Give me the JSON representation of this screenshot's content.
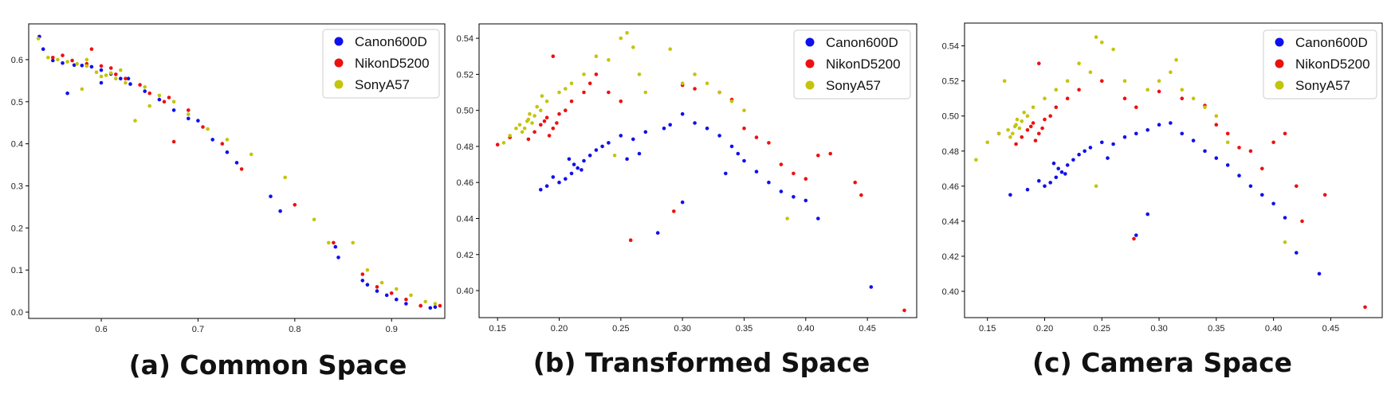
{
  "figure": {
    "captions": [
      "(a) Common Space",
      "(b) Transformed Space",
      "(c) Camera Space"
    ]
  },
  "chart_data": [
    {
      "type": "scatter",
      "title": "(a) Common Space",
      "xlabel": "",
      "ylabel": "",
      "xlim": [
        0.525,
        0.955
      ],
      "ylim": [
        -0.015,
        0.685
      ],
      "xticks": [
        0.6,
        0.7,
        0.8,
        0.9
      ],
      "yticks": [
        0.0,
        0.1,
        0.2,
        0.3,
        0.4,
        0.5,
        0.6
      ],
      "xtick_labels": [
        "0.6",
        "0.7",
        "0.8",
        "0.9"
      ],
      "ytick_labels": [
        "0.0",
        "0.1",
        "0.2",
        "0.3",
        "0.4",
        "0.5",
        "0.6"
      ],
      "grid": false,
      "legend": {
        "position": "top-right",
        "entries": [
          "Canon600D",
          "NikonD5200",
          "SonyA57"
        ]
      },
      "series": [
        {
          "name": "Canon600D",
          "color": "#1010ee",
          "x": [
            0.536,
            0.54,
            0.55,
            0.56,
            0.572,
            0.58,
            0.59,
            0.6,
            0.61,
            0.62,
            0.63,
            0.645,
            0.66,
            0.675,
            0.69,
            0.7,
            0.715,
            0.73,
            0.74,
            0.775,
            0.785,
            0.842,
            0.845,
            0.87,
            0.875,
            0.885,
            0.895,
            0.905,
            0.915,
            0.93,
            0.94,
            0.945,
            0.565,
            0.6,
            0.628
          ],
          "y": [
            0.655,
            0.625,
            0.598,
            0.592,
            0.587,
            0.586,
            0.583,
            0.575,
            0.566,
            0.555,
            0.542,
            0.525,
            0.505,
            0.48,
            0.46,
            0.455,
            0.41,
            0.38,
            0.355,
            0.275,
            0.24,
            0.155,
            0.13,
            0.075,
            0.065,
            0.05,
            0.04,
            0.03,
            0.02,
            0.015,
            0.01,
            0.012,
            0.52,
            0.545,
            0.555
          ]
        },
        {
          "name": "NikonD5200",
          "color": "#ee1010",
          "x": [
            0.55,
            0.56,
            0.57,
            0.585,
            0.6,
            0.615,
            0.625,
            0.64,
            0.65,
            0.665,
            0.675,
            0.69,
            0.705,
            0.725,
            0.745,
            0.8,
            0.84,
            0.87,
            0.885,
            0.9,
            0.915,
            0.93,
            0.95,
            0.59,
            0.61,
            0.67
          ],
          "y": [
            0.605,
            0.61,
            0.598,
            0.59,
            0.585,
            0.565,
            0.555,
            0.54,
            0.52,
            0.5,
            0.405,
            0.48,
            0.44,
            0.4,
            0.34,
            0.255,
            0.165,
            0.09,
            0.06,
            0.045,
            0.03,
            0.015,
            0.015,
            0.625,
            0.58,
            0.51
          ]
        },
        {
          "name": "SonyA57",
          "color": "#c4c40c",
          "x": [
            0.535,
            0.545,
            0.555,
            0.565,
            0.575,
            0.585,
            0.595,
            0.605,
            0.615,
            0.625,
            0.635,
            0.645,
            0.66,
            0.675,
            0.69,
            0.71,
            0.73,
            0.755,
            0.79,
            0.82,
            0.835,
            0.86,
            0.875,
            0.89,
            0.905,
            0.92,
            0.935,
            0.945,
            0.58,
            0.6,
            0.62,
            0.585,
            0.61,
            0.65
          ],
          "y": [
            0.65,
            0.605,
            0.6,
            0.595,
            0.59,
            0.585,
            0.57,
            0.563,
            0.555,
            0.545,
            0.455,
            0.535,
            0.515,
            0.5,
            0.47,
            0.435,
            0.41,
            0.375,
            0.32,
            0.22,
            0.165,
            0.165,
            0.1,
            0.07,
            0.055,
            0.04,
            0.025,
            0.02,
            0.53,
            0.56,
            0.575,
            0.6,
            0.568,
            0.49
          ]
        }
      ]
    },
    {
      "type": "scatter",
      "title": "(b) Transformed Space",
      "xlabel": "",
      "ylabel": "",
      "xlim": [
        0.135,
        0.49
      ],
      "ylim": [
        0.385,
        0.548
      ],
      "xticks": [
        0.15,
        0.2,
        0.25,
        0.3,
        0.35,
        0.4,
        0.45
      ],
      "yticks": [
        0.4,
        0.42,
        0.44,
        0.46,
        0.48,
        0.5,
        0.52,
        0.54
      ],
      "xtick_labels": [
        "0.15",
        "0.20",
        "0.25",
        "0.30",
        "0.35",
        "0.40",
        "0.45"
      ],
      "ytick_labels": [
        "0.40",
        "0.42",
        "0.44",
        "0.46",
        "0.48",
        "0.50",
        "0.52",
        "0.54"
      ],
      "grid": false,
      "legend": {
        "position": "top-right",
        "entries": [
          "Canon600D",
          "NikonD5200",
          "SonyA57"
        ]
      },
      "series": [
        {
          "name": "Canon600D",
          "color": "#1010ee",
          "x": [
            0.215,
            0.21,
            0.22,
            0.205,
            0.225,
            0.2,
            0.23,
            0.212,
            0.218,
            0.208,
            0.195,
            0.19,
            0.24,
            0.25,
            0.26,
            0.27,
            0.285,
            0.29,
            0.3,
            0.31,
            0.32,
            0.33,
            0.34,
            0.345,
            0.35,
            0.36,
            0.37,
            0.38,
            0.39,
            0.4,
            0.41,
            0.3,
            0.28,
            0.453,
            0.185,
            0.235,
            0.255,
            0.265,
            0.335
          ],
          "y": [
            0.468,
            0.465,
            0.472,
            0.462,
            0.475,
            0.46,
            0.478,
            0.47,
            0.467,
            0.473,
            0.463,
            0.458,
            0.482,
            0.486,
            0.484,
            0.488,
            0.49,
            0.492,
            0.498,
            0.493,
            0.49,
            0.486,
            0.48,
            0.476,
            0.472,
            0.466,
            0.46,
            0.455,
            0.452,
            0.45,
            0.44,
            0.449,
            0.432,
            0.402,
            0.456,
            0.48,
            0.473,
            0.476,
            0.465
          ]
        },
        {
          "name": "NikonD5200",
          "color": "#ee1010",
          "x": [
            0.185,
            0.19,
            0.195,
            0.18,
            0.2,
            0.188,
            0.192,
            0.198,
            0.205,
            0.175,
            0.16,
            0.15,
            0.21,
            0.22,
            0.225,
            0.23,
            0.24,
            0.25,
            0.3,
            0.31,
            0.33,
            0.34,
            0.35,
            0.36,
            0.37,
            0.38,
            0.39,
            0.4,
            0.41,
            0.42,
            0.44,
            0.445,
            0.48,
            0.258,
            0.293,
            0.195
          ],
          "y": [
            0.492,
            0.496,
            0.49,
            0.488,
            0.498,
            0.494,
            0.486,
            0.493,
            0.5,
            0.484,
            0.485,
            0.481,
            0.505,
            0.51,
            0.515,
            0.52,
            0.51,
            0.505,
            0.514,
            0.512,
            0.51,
            0.506,
            0.49,
            0.485,
            0.482,
            0.47,
            0.465,
            0.462,
            0.475,
            0.476,
            0.46,
            0.453,
            0.389,
            0.428,
            0.444,
            0.53
          ]
        },
        {
          "name": "SonyA57",
          "color": "#c4c40c",
          "x": [
            0.175,
            0.18,
            0.178,
            0.172,
            0.185,
            0.17,
            0.182,
            0.168,
            0.176,
            0.174,
            0.16,
            0.155,
            0.165,
            0.19,
            0.2,
            0.21,
            0.22,
            0.23,
            0.24,
            0.25,
            0.255,
            0.26,
            0.265,
            0.27,
            0.29,
            0.3,
            0.31,
            0.32,
            0.33,
            0.34,
            0.35,
            0.186,
            0.205,
            0.245,
            0.385
          ],
          "y": [
            0.495,
            0.497,
            0.493,
            0.49,
            0.5,
            0.488,
            0.502,
            0.492,
            0.498,
            0.494,
            0.486,
            0.482,
            0.49,
            0.505,
            0.51,
            0.515,
            0.52,
            0.53,
            0.528,
            0.54,
            0.543,
            0.535,
            0.52,
            0.51,
            0.534,
            0.515,
            0.52,
            0.515,
            0.51,
            0.505,
            0.5,
            0.508,
            0.512,
            0.475,
            0.44
          ]
        }
      ]
    },
    {
      "type": "scatter",
      "title": "(c) Camera Space",
      "xlabel": "",
      "ylabel": "",
      "xlim": [
        0.13,
        0.495
      ],
      "ylim": [
        0.385,
        0.553
      ],
      "xticks": [
        0.15,
        0.2,
        0.25,
        0.3,
        0.35,
        0.4,
        0.45
      ],
      "yticks": [
        0.4,
        0.42,
        0.44,
        0.46,
        0.48,
        0.5,
        0.52,
        0.54
      ],
      "xtick_labels": [
        "0.15",
        "0.20",
        "0.25",
        "0.30",
        "0.35",
        "0.40",
        "0.45"
      ],
      "ytick_labels": [
        "0.40",
        "0.42",
        "0.44",
        "0.46",
        "0.48",
        "0.50",
        "0.52",
        "0.54"
      ],
      "grid": false,
      "legend": {
        "position": "top-right",
        "entries": [
          "Canon600D",
          "NikonD5200",
          "SonyA57"
        ]
      },
      "series": [
        {
          "name": "Canon600D",
          "color": "#1010ee",
          "x": [
            0.215,
            0.21,
            0.22,
            0.205,
            0.225,
            0.2,
            0.23,
            0.212,
            0.218,
            0.208,
            0.195,
            0.185,
            0.17,
            0.24,
            0.25,
            0.26,
            0.27,
            0.28,
            0.29,
            0.3,
            0.31,
            0.32,
            0.33,
            0.34,
            0.35,
            0.36,
            0.37,
            0.38,
            0.39,
            0.4,
            0.41,
            0.42,
            0.44,
            0.29,
            0.28,
            0.255,
            0.235
          ],
          "y": [
            0.468,
            0.465,
            0.472,
            0.462,
            0.475,
            0.46,
            0.478,
            0.47,
            0.467,
            0.473,
            0.463,
            0.458,
            0.455,
            0.482,
            0.485,
            0.484,
            0.488,
            0.49,
            0.492,
            0.495,
            0.496,
            0.49,
            0.486,
            0.48,
            0.476,
            0.472,
            0.466,
            0.46,
            0.455,
            0.45,
            0.442,
            0.422,
            0.41,
            0.444,
            0.432,
            0.476,
            0.48
          ]
        },
        {
          "name": "NikonD5200",
          "color": "#ee1010",
          "x": [
            0.185,
            0.19,
            0.195,
            0.18,
            0.2,
            0.188,
            0.192,
            0.198,
            0.205,
            0.175,
            0.16,
            0.21,
            0.22,
            0.23,
            0.25,
            0.27,
            0.3,
            0.32,
            0.34,
            0.35,
            0.36,
            0.37,
            0.38,
            0.39,
            0.4,
            0.41,
            0.42,
            0.425,
            0.445,
            0.48,
            0.278,
            0.195,
            0.28
          ],
          "y": [
            0.492,
            0.496,
            0.49,
            0.488,
            0.498,
            0.494,
            0.486,
            0.493,
            0.5,
            0.484,
            0.49,
            0.505,
            0.51,
            0.515,
            0.52,
            0.51,
            0.514,
            0.51,
            0.506,
            0.495,
            0.49,
            0.482,
            0.48,
            0.47,
            0.485,
            0.49,
            0.46,
            0.44,
            0.455,
            0.391,
            0.43,
            0.53,
            0.505
          ]
        },
        {
          "name": "SonyA57",
          "color": "#c4c40c",
          "x": [
            0.175,
            0.18,
            0.178,
            0.172,
            0.185,
            0.17,
            0.182,
            0.168,
            0.176,
            0.174,
            0.16,
            0.15,
            0.14,
            0.19,
            0.2,
            0.21,
            0.22,
            0.23,
            0.24,
            0.245,
            0.25,
            0.26,
            0.27,
            0.29,
            0.3,
            0.31,
            0.315,
            0.32,
            0.33,
            0.34,
            0.35,
            0.36,
            0.245,
            0.41,
            0.165
          ],
          "y": [
            0.495,
            0.497,
            0.493,
            0.49,
            0.5,
            0.488,
            0.502,
            0.492,
            0.498,
            0.494,
            0.49,
            0.485,
            0.475,
            0.505,
            0.51,
            0.515,
            0.52,
            0.53,
            0.525,
            0.545,
            0.542,
            0.538,
            0.52,
            0.515,
            0.52,
            0.525,
            0.532,
            0.515,
            0.51,
            0.505,
            0.5,
            0.485,
            0.46,
            0.428,
            0.52
          ]
        }
      ]
    }
  ]
}
